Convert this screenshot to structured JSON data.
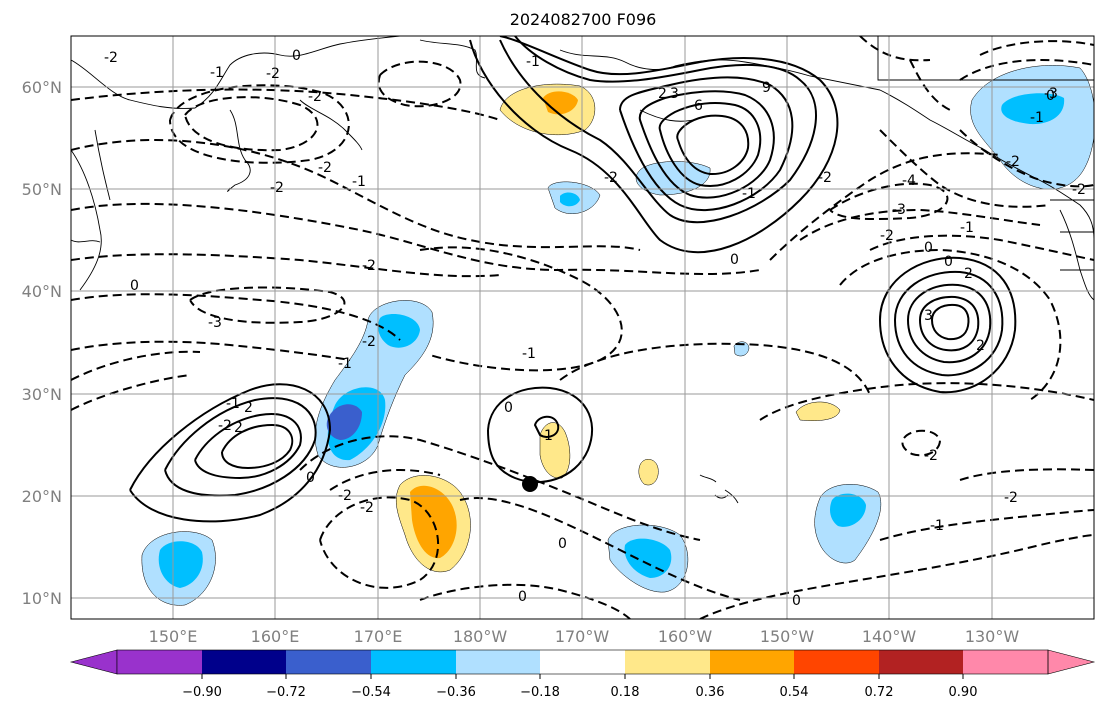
{
  "title": "2024082700 F096",
  "map": {
    "lat_labels": [
      "60°N",
      "50°N",
      "40°N",
      "30°N",
      "20°N",
      "10°N"
    ],
    "lon_labels": [
      "150°E",
      "160°E",
      "170°E",
      "180°W",
      "170°W",
      "160°W",
      "150°W",
      "140°W",
      "130°W"
    ],
    "contour_labels": [
      "-2",
      "-2",
      "0",
      "-1",
      "-2",
      "-2",
      "0",
      "-1",
      "-2",
      "-2",
      "-3",
      "-2",
      "-1",
      "-2",
      "-1",
      "2",
      "3",
      "6",
      "9",
      "-1",
      "0",
      "-2",
      "-4",
      "-3",
      "-2",
      "0",
      "-1",
      "0",
      "-1",
      "-2",
      "2",
      "3",
      "2",
      "-3",
      "-2",
      "-1",
      "-2",
      "0",
      "-1",
      "-2",
      "2",
      "2",
      "0",
      "1",
      "0",
      "-2",
      "-2",
      "-1",
      "-2",
      "0",
      "0",
      "0"
    ],
    "marker": "storm-center-dot"
  },
  "colorbar": {
    "tick_labels": [
      "−0.90",
      "−0.72",
      "−0.54",
      "−0.36",
      "−0.18",
      "0.18",
      "0.36",
      "0.54",
      "0.72",
      "0.90"
    ],
    "colors": [
      "#9932cc",
      "#00008b",
      "#3a5fcd",
      "#00bfff",
      "#b0e0ff",
      "#ffffff",
      "#ffe88a",
      "#ffa500",
      "#ff4500",
      "#b22222",
      "#ff88aa"
    ]
  }
}
